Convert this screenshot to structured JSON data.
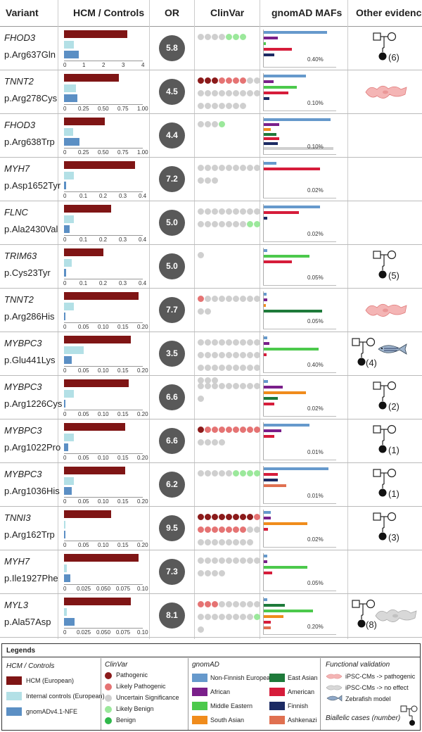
{
  "header": {
    "variant": "Variant",
    "hcm": "HCM / Controls",
    "or": "OR",
    "clinvar": "ClinVar",
    "gnomad": "gnomAD MAFs",
    "other": "Other evidence"
  },
  "colors": {
    "hcm": "#7f1515",
    "controls": "#b3e0e6",
    "gnomad_nfe": "#5b8fc4",
    "pathogenic": "#8b1a1a",
    "likely_pathogenic": "#e57373",
    "uncertain": "#cfcfcf",
    "likely_benign": "#9be89b",
    "benign": "#2fb84a",
    "nfe": "#6699cc",
    "african": "#7a1f8a",
    "middle_eastern": "#4cc94c",
    "south_asian": "#f08c1c",
    "east_asian": "#1e7a3a",
    "american": "#d61c3a",
    "finnish": "#1b2a63",
    "ashkenazi": "#e07050",
    "ipsc_pathogenic": "#f4b5b5",
    "ipsc_no_effect": "#d8d8d8"
  },
  "rows": [
    {
      "gene": "FHOD3",
      "mut": "p.Arg637Gln",
      "or": "5.8",
      "hcm": 3.2,
      "ctl": 0.5,
      "gad": 0.75,
      "axis_max": 4,
      "ticks": [
        "0",
        "1",
        "2",
        "3",
        "4"
      ],
      "clinvar": [
        "U",
        "U",
        "U",
        "U",
        "LB",
        "LB",
        "LB"
      ],
      "gnomad": [
        [
          "nfe",
          0.9
        ],
        [
          "african",
          0.2
        ],
        [
          "middle_eastern",
          0.03
        ],
        [
          "american",
          0.4
        ],
        [
          "finnish",
          0.15
        ]
      ],
      "maf": "0.40%",
      "evidence": "pedigree",
      "cases": "(6)"
    },
    {
      "gene": "TNNT2",
      "mut": "p.Arg278Cys",
      "or": "4.5",
      "hcm": 0.7,
      "ctl": 0.15,
      "gad": 0.17,
      "axis_max": 1,
      "ticks": [
        "0",
        "0.25",
        "0.50",
        "0.75",
        "1.00"
      ],
      "clinvar": [
        "P",
        "P",
        "P",
        "LP",
        "LP",
        "LP",
        "LP",
        "U",
        "U",
        "U",
        "U",
        "U",
        "U",
        "U",
        "U",
        "U",
        "U",
        "U",
        "U",
        "U",
        "U",
        "U",
        "U",
        "U",
        "U"
      ],
      "gnomad": [
        [
          "nfe",
          0.6
        ],
        [
          "african",
          0.14
        ],
        [
          "middle_eastern",
          0.47
        ],
        [
          "american",
          0.35
        ],
        [
          "finnish",
          0.08
        ]
      ],
      "maf": "0.10%",
      "evidence": "ipsc_pathogenic",
      "cases": ""
    },
    {
      "gene": "FHOD3",
      "mut": "p.Arg638Trp",
      "or": "4.4",
      "hcm": 0.52,
      "ctl": 0.12,
      "gad": 0.2,
      "axis_max": 1,
      "ticks": [
        "0",
        "0.25",
        "0.50",
        "0.75",
        "1.00"
      ],
      "clinvar": [
        "U",
        "U",
        "U",
        "LB"
      ],
      "gnomad": [
        [
          "nfe",
          0.95
        ],
        [
          "african",
          0.22
        ],
        [
          "south_asian",
          0.1
        ],
        [
          "east_asian",
          0.18
        ],
        [
          "american",
          0.22
        ],
        [
          "finnish",
          0.2
        ],
        [
          "uncertain",
          0.99
        ]
      ],
      "maf": "0.10%",
      "evidence": "",
      "cases": ""
    },
    {
      "gene": "MYH7",
      "mut": "p.Asp1652Tyr",
      "or": "7.2",
      "hcm": 0.36,
      "ctl": 0.05,
      "gad": 0.01,
      "axis_max": 0.4,
      "ticks": [
        "0",
        "0.1",
        "0.2",
        "0.3",
        "0.4"
      ],
      "clinvar": [
        "U",
        "U",
        "U",
        "U",
        "U",
        "U",
        "U",
        "U",
        "U",
        "U",
        "U",
        "U"
      ],
      "gnomad": [
        [
          "nfe",
          0.18
        ],
        [
          "american",
          0.8
        ]
      ],
      "maf": "0.02%",
      "evidence": "",
      "cases": ""
    },
    {
      "gene": "FLNC",
      "mut": "p.Ala2430Val",
      "or": "5.0",
      "hcm": 0.24,
      "ctl": 0.05,
      "gad": 0.03,
      "axis_max": 0.4,
      "ticks": [
        "0",
        "0.1",
        "0.2",
        "0.3",
        "0.4"
      ],
      "clinvar": [
        "U",
        "U",
        "U",
        "U",
        "U",
        "U",
        "U",
        "U",
        "U",
        "U",
        "U",
        "U",
        "U",
        "U",
        "U",
        "U",
        "LB",
        "LB"
      ],
      "gnomad": [
        [
          "nfe",
          0.8
        ],
        [
          "american",
          0.5
        ],
        [
          "finnish",
          0.05
        ]
      ],
      "maf": "0.02%",
      "evidence": "",
      "cases": ""
    },
    {
      "gene": "TRIM63",
      "mut": "p.Cys23Tyr",
      "or": "5.0",
      "hcm": 0.2,
      "ctl": 0.04,
      "gad": 0.01,
      "axis_max": 0.4,
      "ticks": [
        "0",
        "0.1",
        "0.2",
        "0.3",
        "0.4"
      ],
      "clinvar": [
        "U"
      ],
      "gnomad": [
        [
          "nfe",
          0.05
        ],
        [
          "middle_eastern",
          0.65
        ],
        [
          "american",
          0.4
        ]
      ],
      "maf": "0.05%",
      "evidence": "pedigree",
      "cases": "(5)"
    },
    {
      "gene": "TNNT2",
      "mut": "p.Arg286His",
      "or": "7.7",
      "hcm": 0.19,
      "ctl": 0.025,
      "gad": 0.003,
      "axis_max": 0.2,
      "ticks": [
        "0",
        "0.05",
        "0.10",
        "0.15",
        "0.20"
      ],
      "clinvar": [
        "LP",
        "U",
        "U",
        "U",
        "U",
        "U",
        "U",
        "U",
        "U",
        "U",
        "U"
      ],
      "gnomad": [
        [
          "nfe",
          0.04
        ],
        [
          "african",
          0.05
        ],
        [
          "south_asian",
          0.03
        ],
        [
          "east_asian",
          0.83
        ]
      ],
      "maf": "0.05%",
      "evidence": "ipsc_pathogenic",
      "cases": ""
    },
    {
      "gene": "MYBPC3",
      "mut": "p.Glu441Lys",
      "or": "3.5",
      "hcm": 0.17,
      "ctl": 0.05,
      "gad": 0.02,
      "axis_max": 0.2,
      "ticks": [
        "0",
        "0.05",
        "0.10",
        "0.15",
        "0.20"
      ],
      "clinvar": [
        "U",
        "U",
        "U",
        "U",
        "U",
        "U",
        "U",
        "U",
        "U",
        "U",
        "U",
        "U",
        "U",
        "U",
        "U",
        "U",
        "U",
        "U",
        "U",
        "U",
        "U",
        "U",
        "U",
        "U",
        "U",
        "U",
        "U",
        "U",
        "U",
        "U"
      ],
      "gnomad": [
        [
          "nfe",
          0.05
        ],
        [
          "african",
          0.08
        ],
        [
          "middle_eastern",
          0.78
        ],
        [
          "american",
          0.04
        ]
      ],
      "maf": "0.40%",
      "evidence": "pedigree_zebrafish",
      "cases": "(4)"
    },
    {
      "gene": "MYBPC3",
      "mut": "p.Arg1226Cys",
      "or": "6.6",
      "hcm": 0.165,
      "ctl": 0.025,
      "gad": 0.003,
      "axis_max": 0.2,
      "ticks": [
        "0",
        "0.05",
        "0.10",
        "0.15",
        "0.20"
      ],
      "clinvar": [
        "U",
        "U",
        "U",
        "U",
        "U",
        "U",
        "U",
        "U",
        "U",
        "U"
      ],
      "gnomad": [
        [
          "nfe",
          0.06
        ],
        [
          "african",
          0.27
        ],
        [
          "south_asian",
          0.6
        ],
        [
          "east_asian",
          0.2
        ],
        [
          "american",
          0.15
        ]
      ],
      "maf": "0.02%",
      "evidence": "pedigree",
      "cases": "(2)"
    },
    {
      "gene": "MYBPC3",
      "mut": "p.Arg1022Pro",
      "or": "6.6",
      "hcm": 0.155,
      "ctl": 0.025,
      "gad": 0.01,
      "axis_max": 0.2,
      "ticks": [
        "0",
        "0.05",
        "0.10",
        "0.15",
        "0.20"
      ],
      "clinvar": [
        "P",
        "LP",
        "LP",
        "LP",
        "LP",
        "LP",
        "LP",
        "LP",
        "LP",
        "U",
        "U",
        "U",
        "U"
      ],
      "gnomad": [
        [
          "nfe",
          0.65
        ],
        [
          "african",
          0.25
        ],
        [
          "american",
          0.15
        ]
      ],
      "maf": "0.01%",
      "evidence": "pedigree",
      "cases": "(1)"
    },
    {
      "gene": "MYBPC3",
      "mut": "p.Arg1036His",
      "or": "6.2",
      "hcm": 0.155,
      "ctl": 0.025,
      "gad": 0.02,
      "axis_max": 0.2,
      "ticks": [
        "0",
        "0.05",
        "0.10",
        "0.15",
        "0.20"
      ],
      "clinvar": [
        "U",
        "U",
        "U",
        "U",
        "U",
        "LB",
        "LB",
        "LB",
        "LB"
      ],
      "gnomad": [
        [
          "nfe",
          0.92
        ],
        [
          "american",
          0.2
        ],
        [
          "finnish",
          0.2
        ],
        [
          "ashkenazi",
          0.32
        ]
      ],
      "maf": "0.01%",
      "evidence": "pedigree",
      "cases": "(1)"
    },
    {
      "gene": "TNNI3",
      "mut": "p.Arg162Trp",
      "or": "9.5",
      "hcm": 0.12,
      "ctl": 0.004,
      "gad": 0.0,
      "axis_max": 0.2,
      "ticks": [
        "0",
        "0.05",
        "0.10",
        "0.15",
        "0.20"
      ],
      "clinvar": [
        "P",
        "P",
        "P",
        "P",
        "P",
        "P",
        "P",
        "P",
        "LP",
        "LP",
        "LP",
        "LP",
        "LP",
        "LP",
        "LP",
        "LP",
        "U",
        "U",
        "U",
        "U",
        "U",
        "U",
        "U",
        "U",
        "U",
        "U"
      ],
      "gnomad": [
        [
          "nfe",
          0.1
        ],
        [
          "african",
          0.1
        ],
        [
          "south_asian",
          0.62
        ],
        [
          "american",
          0.06
        ]
      ],
      "maf": "0.02%",
      "evidence": "pedigree",
      "cases": "(3)"
    },
    {
      "gene": "MYH7",
      "mut": "p.Ile1927Phe",
      "or": "7.3",
      "hcm": 0.095,
      "ctl": 0.004,
      "gad": 0.008,
      "axis_max": 0.1,
      "ticks": [
        "0",
        "0.025",
        "0.050",
        "0.075",
        "0.10"
      ],
      "clinvar": [
        "U",
        "U",
        "U",
        "U",
        "U",
        "U",
        "U",
        "U",
        "U",
        "U",
        "U",
        "U",
        "U"
      ],
      "gnomad": [
        [
          "nfe",
          0.05
        ],
        [
          "african",
          0.05
        ],
        [
          "middle_eastern",
          0.62
        ],
        [
          "american",
          0.12
        ]
      ],
      "maf": "0.05%",
      "evidence": "",
      "cases": ""
    },
    {
      "gene": "MYL3",
      "mut": "p.Ala57Asp",
      "or": "8.1",
      "hcm": 0.085,
      "ctl": 0.004,
      "gad": 0.013,
      "axis_max": 0.1,
      "ticks": [
        "0",
        "0.025",
        "0.050",
        "0.075",
        "0.10"
      ],
      "clinvar": [
        "LP",
        "LP",
        "LP",
        "U",
        "U",
        "U",
        "U",
        "U",
        "U",
        "U",
        "U",
        "U",
        "U",
        "U",
        "U",
        "U",
        "U",
        "LB",
        "U"
      ],
      "gnomad": [
        [
          "nfe",
          0.05
        ],
        [
          "east_asian",
          0.3
        ],
        [
          "middle_eastern",
          0.7
        ],
        [
          "south_asian",
          0.28
        ],
        [
          "american",
          0.1
        ],
        [
          "ashkenazi",
          0.1
        ]
      ],
      "maf": "0.20%",
      "evidence": "pedigree_ipsc_noeffect",
      "cases": "(8)"
    }
  ],
  "legend": {
    "title": "Legends",
    "hcm_title": "HCM / Controls",
    "hcm_items": [
      "HCM (European)",
      "Internal controls (European)",
      "gnomADv4.1-NFE"
    ],
    "clinvar_title": "ClinVar",
    "clinvar_items": [
      "Pathogenic",
      "Likely Pathogenic",
      "Uncertain Significance",
      "Likely Benign",
      "Benign"
    ],
    "gnomad_title": "gnomAD",
    "gnomad_left": [
      "Non-Finnish European",
      "African",
      "Middle Eastern",
      "South Asian"
    ],
    "gnomad_right": [
      "East Asian",
      "American",
      "Finnish",
      "Ashkenazi"
    ],
    "fv_title": "Functional validation",
    "fv_items": [
      "iPSC-CMs -> pathogenic",
      "iPSC-CMs -> no effect",
      "Zebrafish model"
    ],
    "biallelic": "Biallelic cases (number)"
  }
}
